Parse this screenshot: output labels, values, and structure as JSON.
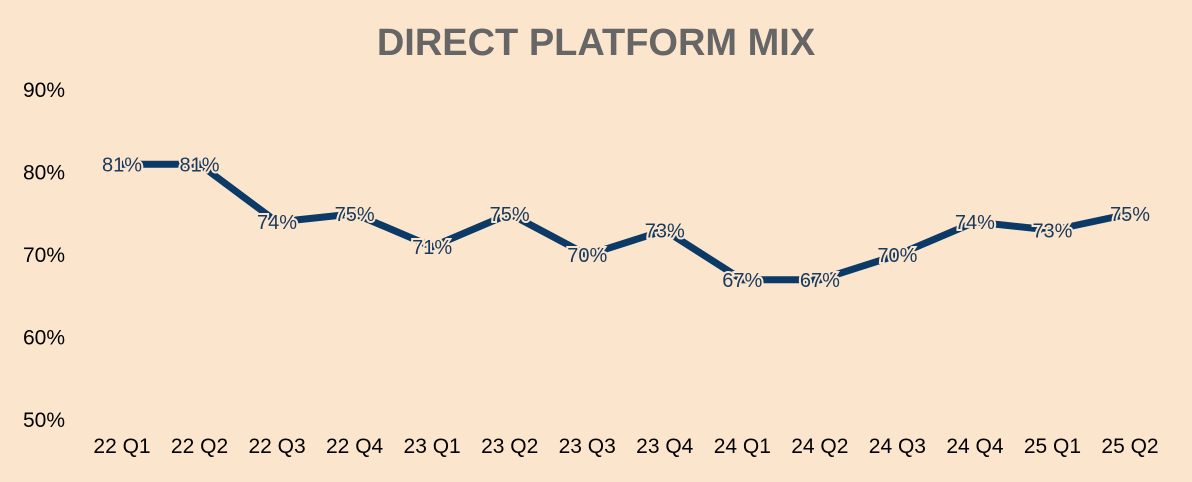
{
  "chart_data": {
    "type": "line",
    "title": "DIRECT PLATFORM MIX",
    "xlabel": "",
    "ylabel": "",
    "categories": [
      "22 Q1",
      "22 Q2",
      "22 Q3",
      "22 Q4",
      "23 Q1",
      "23 Q2",
      "23 Q3",
      "23 Q4",
      "24 Q1",
      "24 Q2",
      "24 Q3",
      "24 Q4",
      "25 Q1",
      "25 Q2"
    ],
    "series": [
      {
        "values": [
          81,
          81,
          74,
          75,
          71,
          75,
          70,
          73,
          67,
          67,
          70,
          74,
          73,
          75
        ],
        "data_labels": [
          "81%",
          "81%",
          "74%",
          "75%",
          "71%",
          "75%",
          "70%",
          "73%",
          "67%",
          "67%",
          "70%",
          "74%",
          "73%",
          "75%"
        ],
        "color": "#0b3a66"
      }
    ],
    "y_ticks": [
      50,
      60,
      70,
      80,
      90
    ],
    "y_tick_labels": [
      "50%",
      "60%",
      "70%",
      "80%",
      "90%"
    ],
    "ylim": [
      50,
      90
    ],
    "grid": false,
    "legend": "none",
    "background": "#fce5cd",
    "title_color": "#666666"
  }
}
